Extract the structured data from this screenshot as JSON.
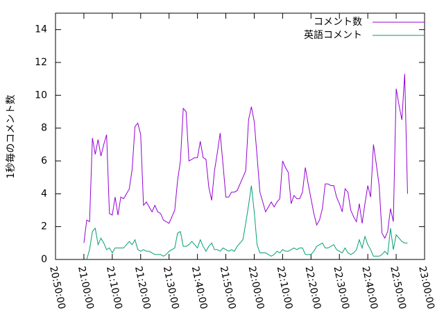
{
  "chart_data": {
    "type": "line",
    "ylabel": "1秒毎のコメント数",
    "x": [
      "21:00:00",
      "21:01:00",
      "21:02:00",
      "21:03:00",
      "21:04:00",
      "21:05:00",
      "21:06:00",
      "21:07:00",
      "21:08:00",
      "21:09:00",
      "21:10:00",
      "21:11:00",
      "21:12:00",
      "21:13:00",
      "21:14:00",
      "21:15:00",
      "21:16:00",
      "21:17:00",
      "21:18:00",
      "21:19:00",
      "21:20:00",
      "21:21:00",
      "21:22:00",
      "21:23:00",
      "21:24:00",
      "21:25:00",
      "21:26:00",
      "21:27:00",
      "21:28:00",
      "21:29:00",
      "21:30:00",
      "21:31:00",
      "21:32:00",
      "21:33:00",
      "21:34:00",
      "21:35:00",
      "21:36:00",
      "21:37:00",
      "21:38:00",
      "21:39:00",
      "21:40:00",
      "21:41:00",
      "21:42:00",
      "21:43:00",
      "21:44:00",
      "21:45:00",
      "21:46:00",
      "21:47:00",
      "21:48:00",
      "21:49:00",
      "21:50:00",
      "21:51:00",
      "21:52:00",
      "21:53:00",
      "21:54:00",
      "21:55:00",
      "21:56:00",
      "21:57:00",
      "21:58:00",
      "21:59:00",
      "22:00:00",
      "22:01:00",
      "22:02:00",
      "22:03:00",
      "22:04:00",
      "22:05:00",
      "22:06:00",
      "22:07:00",
      "22:08:00",
      "22:09:00",
      "22:10:00",
      "22:11:00",
      "22:12:00",
      "22:13:00",
      "22:14:00",
      "22:15:00",
      "22:16:00",
      "22:17:00",
      "22:18:00",
      "22:19:00",
      "22:20:00",
      "22:21:00",
      "22:22:00",
      "22:23:00",
      "22:24:00",
      "22:25:00",
      "22:26:00",
      "22:27:00",
      "22:28:00",
      "22:29:00",
      "22:30:00",
      "22:31:00",
      "22:32:00",
      "22:33:00",
      "22:34:00",
      "22:35:00",
      "22:36:00",
      "22:37:00",
      "22:38:00",
      "22:39:00",
      "22:40:00",
      "22:41:00",
      "22:42:00",
      "22:43:00",
      "22:44:00",
      "22:45:00",
      "22:46:00",
      "22:47:00",
      "22:48:00",
      "22:49:00",
      "22:50:00",
      "22:51:00",
      "22:52:00",
      "22:53:00",
      "22:54:00"
    ],
    "series": [
      {
        "name": "コメント数",
        "color": "#9400d3",
        "values": [
          1.0,
          2.4,
          2.3,
          7.4,
          6.4,
          7.3,
          6.3,
          7.0,
          7.6,
          2.8,
          2.7,
          3.8,
          2.7,
          3.8,
          3.7,
          4.0,
          4.3,
          5.5,
          8.1,
          8.3,
          7.6,
          3.3,
          3.5,
          3.2,
          2.9,
          3.3,
          2.9,
          2.8,
          2.4,
          2.3,
          2.2,
          2.6,
          3.0,
          4.8,
          6.0,
          9.2,
          9.0,
          6.0,
          6.1,
          6.2,
          6.2,
          7.2,
          6.2,
          6.1,
          4.4,
          3.6,
          5.4,
          6.5,
          7.7,
          5.8,
          3.8,
          3.8,
          4.1,
          4.1,
          4.2,
          4.6,
          5.0,
          5.4,
          8.5,
          9.3,
          8.4,
          6.3,
          4.1,
          3.5,
          2.9,
          3.2,
          3.5,
          3.2,
          3.5,
          3.7,
          6.0,
          5.6,
          5.3,
          3.4,
          3.9,
          3.7,
          3.7,
          4.1,
          5.6,
          4.6,
          3.7,
          2.8,
          2.1,
          2.4,
          3.1,
          4.6,
          4.6,
          4.5,
          4.5,
          3.8,
          3.4,
          2.9,
          4.3,
          4.1,
          3.0,
          2.6,
          2.3,
          3.4,
          2.2,
          3.4,
          4.5,
          3.8,
          7.0,
          5.8,
          4.5,
          1.6,
          1.3,
          1.7,
          3.1,
          2.3,
          10.4,
          9.4,
          8.5,
          11.3,
          4.0
        ]
      },
      {
        "name": "英語コメント",
        "color": "#009e73",
        "values": [
          null,
          0.0,
          0.6,
          1.7,
          1.9,
          0.9,
          1.3,
          1.0,
          0.6,
          0.7,
          0.4,
          0.7,
          0.7,
          0.7,
          0.7,
          0.9,
          1.1,
          0.9,
          1.2,
          0.6,
          0.5,
          0.6,
          0.5,
          0.5,
          0.4,
          0.3,
          0.3,
          0.3,
          0.2,
          0.3,
          0.5,
          0.6,
          0.7,
          1.6,
          1.7,
          0.8,
          0.8,
          0.9,
          1.1,
          0.9,
          0.7,
          1.2,
          0.8,
          0.5,
          0.8,
          1.0,
          0.6,
          0.6,
          0.5,
          0.7,
          0.6,
          0.5,
          0.6,
          0.5,
          0.8,
          1.0,
          1.2,
          2.2,
          3.3,
          4.5,
          2.9,
          0.9,
          0.4,
          0.4,
          0.4,
          0.3,
          0.2,
          0.3,
          0.5,
          0.4,
          0.6,
          0.5,
          0.5,
          0.6,
          0.7,
          0.6,
          0.7,
          0.7,
          0.3,
          0.3,
          0.3,
          0.5,
          0.8,
          0.9,
          1.0,
          0.7,
          0.7,
          0.8,
          0.9,
          0.6,
          0.5,
          0.4,
          0.7,
          0.4,
          0.3,
          0.4,
          0.6,
          1.2,
          0.7,
          1.4,
          0.9,
          0.6,
          0.2,
          0.2,
          0.2,
          0.3,
          0.5,
          0.3,
          1.9,
          0.6,
          1.5,
          1.3,
          1.1,
          1.0,
          1.0
        ]
      }
    ],
    "xlim": [
      "20:50:00",
      "23:00:00"
    ],
    "xticks": [
      "20:50:00",
      "21:00:00",
      "21:10:00",
      "21:20:00",
      "21:30:00",
      "21:40:00",
      "21:50:00",
      "22:00:00",
      "22:10:00",
      "22:20:00",
      "22:30:00",
      "22:40:00",
      "22:50:00",
      "23:00:00"
    ],
    "ylim": [
      0,
      15
    ],
    "yticks": [
      0,
      2,
      4,
      6,
      8,
      10,
      12,
      14
    ],
    "legend": "top-right"
  }
}
